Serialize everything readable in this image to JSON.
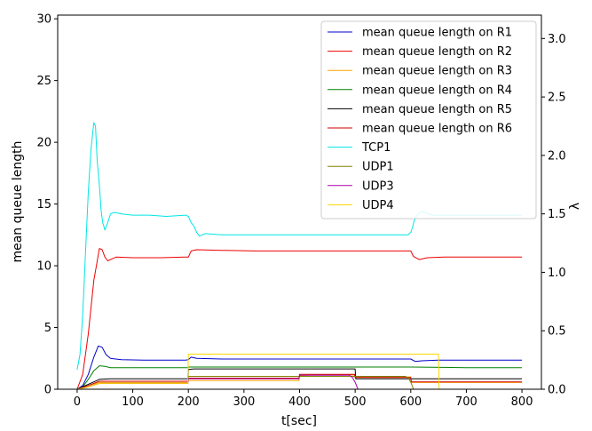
{
  "chart_data": {
    "type": "line",
    "xlabel": "t[sec]",
    "ylabel": "mean queue length",
    "y2label": "λ",
    "xlim": [
      -35,
      835
    ],
    "ylim": [
      0,
      30.3
    ],
    "y2lim": [
      0,
      3.2
    ],
    "xticks": [
      0,
      100,
      200,
      300,
      400,
      500,
      600,
      700,
      800
    ],
    "yticks": [
      0,
      5,
      10,
      15,
      20,
      25,
      30
    ],
    "y2ticks": [
      0.0,
      0.5,
      1.0,
      1.5,
      2.0,
      2.5,
      3.0
    ],
    "y2tick_labels": [
      "0.0",
      "0.5",
      "1.0",
      "1.5",
      "2.0",
      "2.5",
      "3.0"
    ],
    "grid": false,
    "legend_position": "top-right",
    "series": [
      {
        "name": "mean queue length on R1",
        "axis": "left",
        "color": "#0000cc",
        "x": [
          0,
          10,
          20,
          30,
          38,
          45,
          52,
          60,
          80,
          120,
          160,
          195,
          200,
          205,
          215,
          260,
          320,
          380,
          440,
          500,
          560,
          600,
          608,
          620,
          650,
          700,
          750,
          800
        ],
        "y": [
          0,
          0.3,
          1.2,
          2.6,
          3.5,
          3.4,
          2.8,
          2.5,
          2.4,
          2.35,
          2.35,
          2.35,
          2.4,
          2.6,
          2.5,
          2.45,
          2.45,
          2.45,
          2.45,
          2.45,
          2.45,
          2.45,
          2.25,
          2.3,
          2.35,
          2.35,
          2.35,
          2.35
        ]
      },
      {
        "name": "mean queue length on R2",
        "axis": "left",
        "color": "#ee0000",
        "x": [
          0,
          10,
          20,
          30,
          40,
          45,
          50,
          55,
          60,
          70,
          100,
          150,
          195,
          200,
          205,
          215,
          260,
          320,
          380,
          440,
          500,
          560,
          600,
          605,
          615,
          630,
          660,
          700,
          750,
          800
        ],
        "y": [
          0,
          1.2,
          4.5,
          8.8,
          11.4,
          11.3,
          10.7,
          10.4,
          10.5,
          10.7,
          10.65,
          10.65,
          10.7,
          10.7,
          11.2,
          11.3,
          11.25,
          11.2,
          11.2,
          11.2,
          11.2,
          11.2,
          11.2,
          10.75,
          10.5,
          10.65,
          10.7,
          10.7,
          10.7,
          10.7
        ]
      },
      {
        "name": "mean queue length on R3",
        "axis": "left",
        "color": "#ffa500",
        "x": [
          0,
          20,
          40,
          60,
          100,
          199,
          200,
          300,
          399,
          400,
          420,
          499,
          500,
          600,
          601,
          700,
          800
        ],
        "y": [
          0,
          0.3,
          0.55,
          0.55,
          0.55,
          0.55,
          0.7,
          0.7,
          0.7,
          1.1,
          1.15,
          1.15,
          1.0,
          1.0,
          0.55,
          0.55,
          0.55
        ]
      },
      {
        "name": "mean queue length on R4",
        "axis": "left",
        "color": "#008000",
        "x": [
          0,
          10,
          20,
          30,
          40,
          50,
          60,
          100,
          150,
          199,
          200,
          300,
          399,
          400,
          500,
          600,
          700,
          800
        ],
        "y": [
          0,
          0.2,
          0.8,
          1.5,
          1.9,
          1.85,
          1.75,
          1.75,
          1.75,
          1.75,
          1.8,
          1.8,
          1.8,
          1.8,
          1.8,
          1.8,
          1.75,
          1.75
        ]
      },
      {
        "name": "mean queue length on R5",
        "axis": "left",
        "color": "#000000",
        "x": [
          0,
          20,
          40,
          60,
          100,
          199,
          200,
          210,
          300,
          399,
          400,
          500,
          501,
          600,
          601,
          700,
          800
        ],
        "y": [
          0,
          0.4,
          0.8,
          0.85,
          0.85,
          0.85,
          1.6,
          1.65,
          1.65,
          1.65,
          1.65,
          1.65,
          0.85,
          0.85,
          0.85,
          0.85,
          0.85
        ]
      },
      {
        "name": "mean queue length on R6",
        "axis": "left",
        "color": "#cc0000",
        "x": [
          0,
          20,
          40,
          60,
          100,
          199,
          200,
          300,
          399,
          400,
          499,
          500,
          600,
          601,
          700,
          800
        ],
        "y": [
          0,
          0.3,
          0.65,
          0.65,
          0.65,
          0.65,
          0.9,
          0.9,
          0.9,
          1.2,
          1.2,
          0.95,
          0.95,
          0.6,
          0.6,
          0.6
        ]
      },
      {
        "name": "TCP1",
        "axis": "left",
        "color": "#00e5e5",
        "x": [
          0,
          5,
          10,
          15,
          20,
          25,
          30,
          33,
          36,
          40,
          43,
          46,
          50,
          55,
          60,
          65,
          70,
          80,
          100,
          130,
          160,
          195,
          200,
          205,
          210,
          215,
          220,
          230,
          260,
          300,
          350,
          400,
          450,
          500,
          550,
          595,
          600,
          603,
          606,
          610,
          615,
          620,
          640,
          700,
          750,
          800
        ],
        "y": [
          1.6,
          2.8,
          6,
          11,
          16,
          19.5,
          21.6,
          21.3,
          18.5,
          16.5,
          14.5,
          13.5,
          12.9,
          13.5,
          14.2,
          14.3,
          14.3,
          14.2,
          14.1,
          14.1,
          14.0,
          14.1,
          14.0,
          13.5,
          13.2,
          12.7,
          12.4,
          12.6,
          12.5,
          12.5,
          12.5,
          12.5,
          12.5,
          12.5,
          12.5,
          12.5,
          12.7,
          13.1,
          13.6,
          14.0,
          14.3,
          14.4,
          14.1,
          14.1,
          14.1,
          14.1
        ]
      },
      {
        "name": "UDP1",
        "axis": "right",
        "color": "#808000",
        "x": [
          0,
          20,
          40,
          60,
          100,
          199,
          200,
          300,
          400,
          500,
          590,
          595,
          600,
          605,
          800
        ],
        "y": [
          0,
          0.02,
          0.05,
          0.05,
          0.05,
          0.05,
          0.11,
          0.11,
          0.11,
          0.11,
          0.11,
          0.1,
          0.06,
          0.0,
          0.0
        ]
      },
      {
        "name": "UDP3",
        "axis": "right",
        "color": "#aa00aa",
        "x": [
          0,
          20,
          40,
          60,
          100,
          199,
          200,
          300,
          399,
          400,
          490,
          495,
          500,
          505,
          800
        ],
        "y": [
          0,
          0.02,
          0.05,
          0.05,
          0.05,
          0.05,
          0.09,
          0.09,
          0.09,
          0.12,
          0.12,
          0.1,
          0.06,
          0.0,
          0.0
        ]
      },
      {
        "name": "UDP4",
        "axis": "right",
        "color": "#ffd700",
        "x": [
          0,
          20,
          40,
          60,
          100,
          199,
          200,
          300,
          399,
          400,
          500,
          600,
          650,
          651,
          800
        ],
        "y": [
          0,
          0.02,
          0.05,
          0.05,
          0.05,
          0.05,
          0.3,
          0.3,
          0.3,
          0.3,
          0.3,
          0.3,
          0.3,
          0.0,
          0.0
        ]
      }
    ]
  }
}
